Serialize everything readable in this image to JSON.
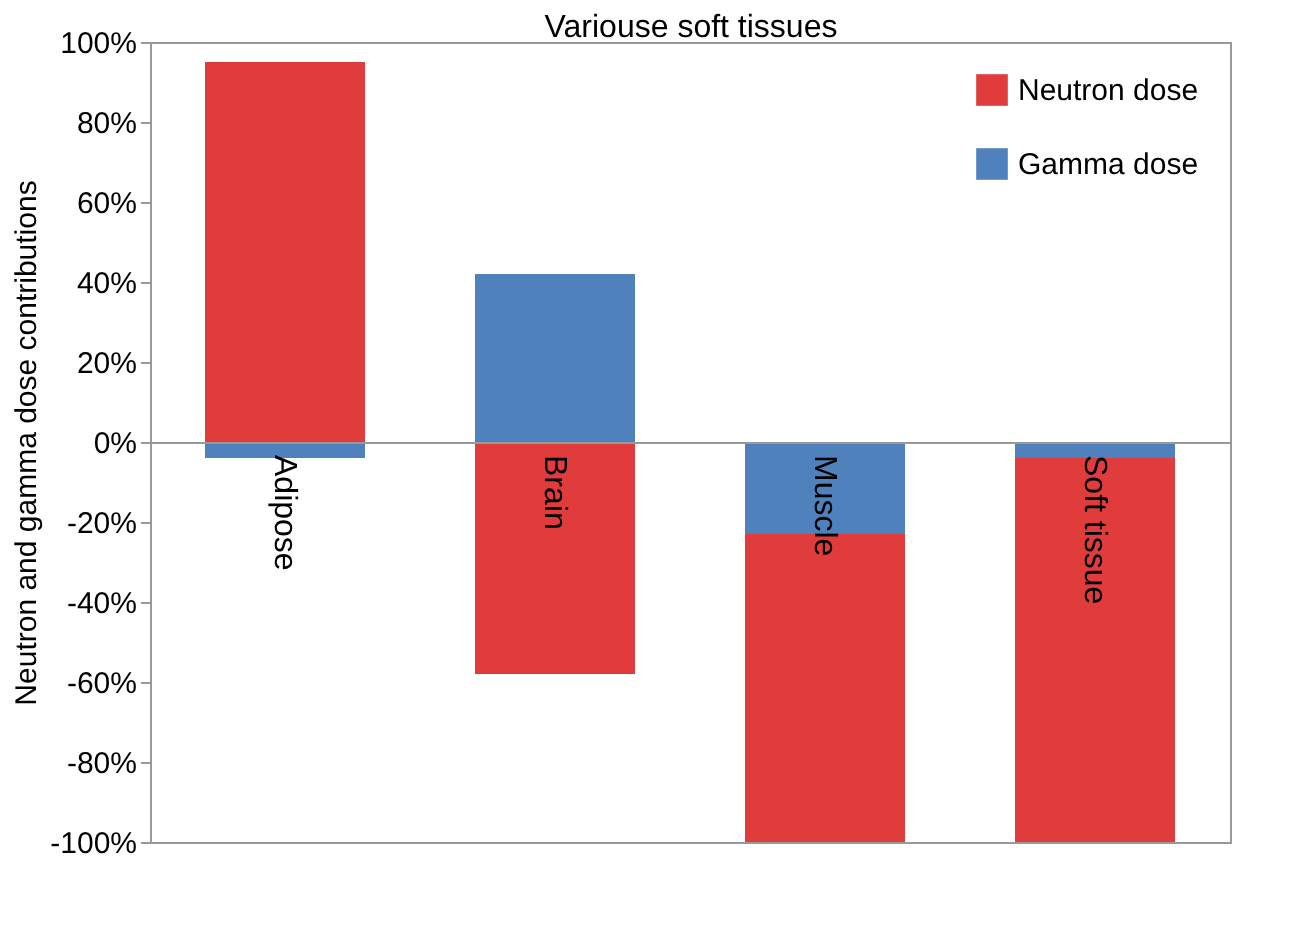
{
  "chart_data": {
    "type": "bar",
    "stacked": true,
    "xlabel": "Variouse soft tissues",
    "ylabel": "Neutron and gamma dose contributions",
    "categories": [
      "Adipose",
      "Brain",
      "Muscle",
      "Soft tissue"
    ],
    "series": [
      {
        "name": "Gamma dose",
        "color": "#4f81bd",
        "values": [
          -4,
          42,
          -23,
          -4
        ]
      },
      {
        "name": "Neutron dose",
        "color": "#e03c3c",
        "values": [
          95,
          -58,
          -77,
          -96
        ]
      }
    ],
    "ylim": [
      -100,
      100
    ],
    "yticks": [
      {
        "value": -100,
        "label": "-100%"
      },
      {
        "value": -80,
        "label": "-80%"
      },
      {
        "value": -60,
        "label": "-60%"
      },
      {
        "value": -40,
        "label": "-40%"
      },
      {
        "value": -20,
        "label": "-20%"
      },
      {
        "value": 0,
        "label": "0%"
      },
      {
        "value": 20,
        "label": "20%"
      },
      {
        "value": 40,
        "label": "40%"
      },
      {
        "value": 60,
        "label": "60%"
      },
      {
        "value": 80,
        "label": "80%"
      },
      {
        "value": 100,
        "label": "100%"
      }
    ],
    "grid": false,
    "legend": "top right"
  }
}
